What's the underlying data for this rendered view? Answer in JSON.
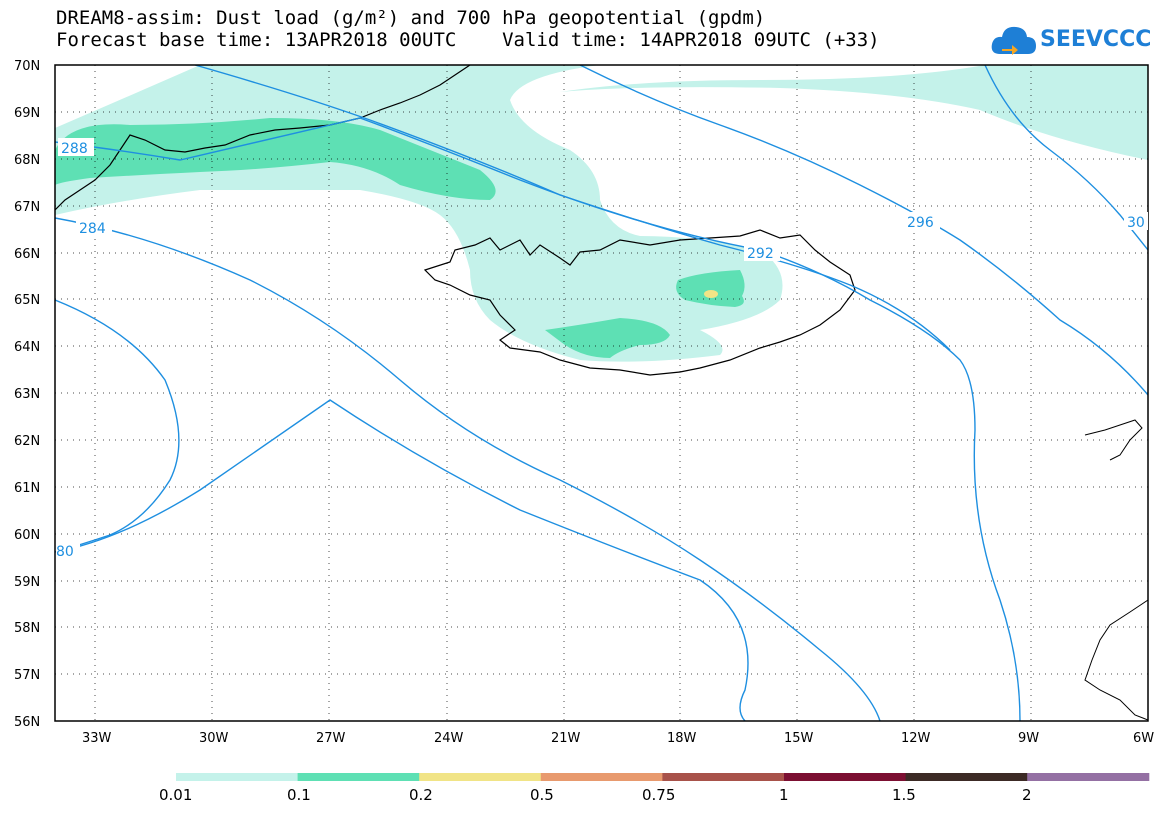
{
  "header": {
    "title_line1": "DREAM8-assim: Dust load (g/m²) and 700 hPa geopotential (gpdm)",
    "title_line2": "Forecast base time: 13APR2018 00UTC    Valid time: 14APR2018 09UTC (+33)"
  },
  "logo": {
    "text": "SEEVCCC",
    "color": "#1e7fd6",
    "icon": "cloud-icon"
  },
  "map": {
    "lat_labels": [
      "70N",
      "69N",
      "68N",
      "67N",
      "66N",
      "65N",
      "64N",
      "63N",
      "62N",
      "61N",
      "60N",
      "59N",
      "58N",
      "57N",
      "56N"
    ],
    "lon_labels": [
      "33W",
      "30W",
      "27W",
      "24W",
      "21W",
      "18W",
      "15W",
      "12W",
      "9W",
      "6W"
    ],
    "contour_labels": [
      "288",
      "284",
      "296",
      "292",
      "30",
      "80"
    ],
    "contour_color": "#1e8fe0"
  },
  "legend": {
    "labels": [
      "0.01",
      "0.1",
      "0.2",
      "0.5",
      "0.75",
      "1",
      "1.5",
      "2"
    ],
    "colors": [
      "#c4f2ea",
      "#5ee0b4",
      "#f1e486",
      "#e89a6e",
      "#a8524a",
      "#7c0f32",
      "#3c2a25",
      "#9470a3"
    ]
  }
}
